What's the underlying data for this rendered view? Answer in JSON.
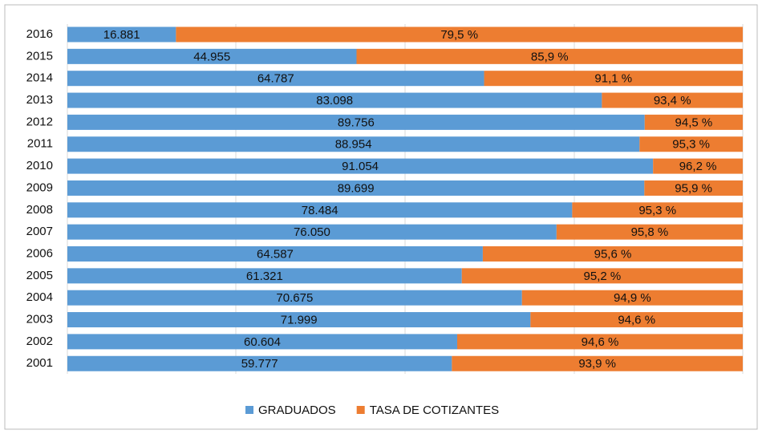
{
  "chart_data": {
    "type": "stacked-bar-horizontal",
    "categories": [
      "2016",
      "2015",
      "2014",
      "2013",
      "2012",
      "2011",
      "2010",
      "2009",
      "2008",
      "2007",
      "2006",
      "2005",
      "2004",
      "2003",
      "2002",
      "2001"
    ],
    "xlim": [
      0,
      105000
    ],
    "series": [
      {
        "name": "GRADUADOS",
        "color": "#5b9bd5",
        "values": [
          16881,
          44955,
          64787,
          83098,
          89756,
          88954,
          91054,
          89699,
          78484,
          76050,
          64587,
          61321,
          70675,
          71999,
          60604,
          59777
        ],
        "value_labels": [
          "16.881",
          "44.955",
          "64.787",
          "83.098",
          "89.756",
          "88.954",
          "91.054",
          "89.699",
          "78.484",
          "76.050",
          "64.587",
          "61.321",
          "70.675",
          "71.999",
          "60.604",
          "59.777"
        ]
      },
      {
        "name": "TASA DE COTIZANTES",
        "color": "#ed7d31",
        "values": [
          79.5,
          85.9,
          91.1,
          93.4,
          94.5,
          95.3,
          96.2,
          95.9,
          95.3,
          95.8,
          95.6,
          95.2,
          94.9,
          94.6,
          94.6,
          93.9
        ],
        "value_labels": [
          "79,5 %",
          "85,9 %",
          "91,1 %",
          "93,4 %",
          "94,5 %",
          "95,3 %",
          "96,2 %",
          "95,9 %",
          "95,3 %",
          "95,8 %",
          "95,6 %",
          "95,2 %",
          "94,9 %",
          "94,6 %",
          "94,6 %",
          "93,9 %"
        ]
      }
    ]
  }
}
